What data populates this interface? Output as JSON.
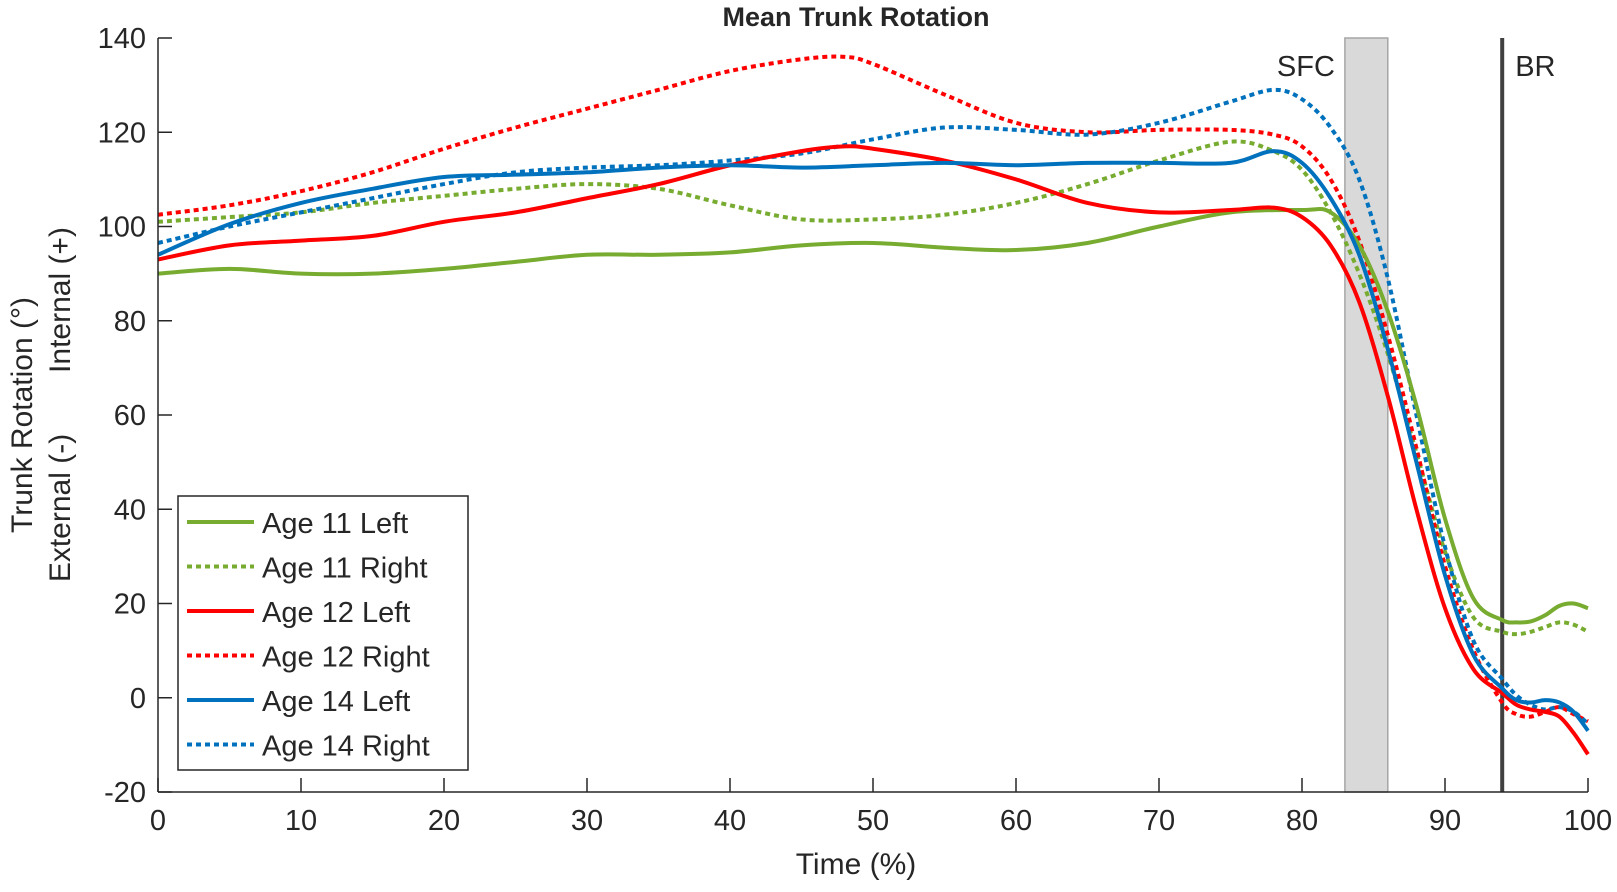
{
  "chart_data": {
    "type": "line",
    "title": "Mean Trunk Rotation",
    "xlabel": "Time (%)",
    "ylabel": "Trunk Rotation (°)",
    "ylabel_internal": "Internal (+)",
    "ylabel_external": "External (-)",
    "xlim": [
      0,
      100
    ],
    "ylim": [
      -20,
      140
    ],
    "xticks": [
      0,
      10,
      20,
      30,
      40,
      50,
      60,
      70,
      80,
      90,
      100
    ],
    "yticks": [
      -20,
      0,
      20,
      40,
      60,
      80,
      100,
      120,
      140
    ],
    "grid": false,
    "legend_position": "bottom-left",
    "events": [
      {
        "label": "SFC",
        "type": "band",
        "x_start": 83,
        "x_end": 86,
        "color": "#d9d9d9"
      },
      {
        "label": "BR",
        "type": "line",
        "x": 94,
        "color": "#404040"
      }
    ],
    "series": [
      {
        "name": "Age 11 Left",
        "color": "#77ac30",
        "style": "solid",
        "x": [
          0,
          5,
          10,
          15,
          20,
          25,
          30,
          35,
          40,
          45,
          50,
          55,
          60,
          65,
          70,
          75,
          80,
          82,
          84,
          86,
          88,
          90,
          92,
          94,
          95,
          96,
          97,
          98,
          99,
          100
        ],
        "y": [
          90,
          91,
          90,
          90,
          91,
          92.5,
          94,
          94,
          94.5,
          96,
          96.5,
          95.5,
          95,
          96.5,
          100,
          103,
          103.5,
          103,
          96,
          82,
          62,
          38,
          21,
          16.5,
          16,
          16.2,
          17.5,
          19.5,
          20,
          19
        ]
      },
      {
        "name": "Age 11 Right",
        "color": "#77ac30",
        "style": "dotted",
        "x": [
          0,
          5,
          10,
          15,
          20,
          25,
          30,
          35,
          40,
          45,
          50,
          55,
          60,
          65,
          70,
          75,
          78,
          80,
          82,
          84,
          86,
          88,
          90,
          92,
          94,
          95,
          96,
          97,
          98,
          99,
          100
        ],
        "y": [
          101,
          102,
          103,
          105,
          106.5,
          108,
          109,
          108,
          104.5,
          101.5,
          101.5,
          102.5,
          105,
          109,
          114,
          118,
          116,
          112,
          103,
          90,
          73,
          52,
          31,
          17,
          14,
          13.5,
          14,
          15,
          16,
          15.5,
          14
        ]
      },
      {
        "name": "Age 12 Left",
        "color": "#ff0000",
        "style": "solid",
        "x": [
          0,
          5,
          10,
          15,
          20,
          25,
          30,
          35,
          40,
          45,
          48,
          50,
          55,
          60,
          65,
          70,
          75,
          78,
          80,
          82,
          84,
          86,
          88,
          90,
          92,
          94,
          95,
          96,
          97,
          98,
          99,
          100
        ],
        "y": [
          93,
          96,
          97,
          98,
          101,
          103,
          106,
          109,
          113,
          116,
          117,
          116.5,
          114,
          110,
          105,
          103,
          103.5,
          104,
          102,
          96,
          84,
          64,
          40,
          19,
          6,
          1,
          -1.5,
          -2.5,
          -3,
          -4,
          -7.5,
          -12
        ]
      },
      {
        "name": "Age 12 Right",
        "color": "#ff0000",
        "style": "dotted",
        "x": [
          0,
          5,
          10,
          15,
          20,
          25,
          30,
          35,
          40,
          45,
          48,
          50,
          55,
          60,
          65,
          70,
          75,
          78,
          80,
          82,
          84,
          86,
          88,
          90,
          92,
          94,
          95,
          96,
          97,
          98,
          99,
          100
        ],
        "y": [
          102.5,
          104.5,
          107.5,
          111.5,
          116.5,
          121,
          125,
          129,
          133,
          135.5,
          136,
          134.5,
          128,
          122,
          120,
          120.5,
          120.5,
          119.5,
          117,
          110,
          97,
          77,
          53,
          28,
          10,
          -1,
          -3.5,
          -4,
          -3,
          -2,
          -3.5,
          -5
        ]
      },
      {
        "name": "Age 14 Left",
        "color": "#0072bd",
        "style": "solid",
        "x": [
          0,
          5,
          10,
          15,
          20,
          25,
          30,
          35,
          40,
          45,
          50,
          55,
          60,
          65,
          70,
          75,
          78,
          80,
          82,
          84,
          86,
          88,
          90,
          92,
          94,
          95,
          96,
          97,
          98,
          99,
          100
        ],
        "y": [
          94,
          100.5,
          105,
          108,
          110.5,
          111,
          111.5,
          112.5,
          113,
          112.5,
          113,
          113.5,
          113,
          113.5,
          113.5,
          113.5,
          116,
          113.5,
          106,
          94,
          74,
          50,
          26,
          9,
          2,
          -0.5,
          -1,
          -0.5,
          -1,
          -3,
          -7
        ]
      },
      {
        "name": "Age 14 Right",
        "color": "#0072bd",
        "style": "dotted",
        "x": [
          0,
          5,
          10,
          15,
          20,
          25,
          30,
          35,
          40,
          45,
          50,
          55,
          60,
          65,
          70,
          75,
          78,
          80,
          82,
          84,
          86,
          88,
          90,
          92,
          94,
          95,
          96,
          97,
          98,
          99,
          100
        ],
        "y": [
          96.5,
          100,
          103,
          106,
          109,
          111.5,
          112.5,
          113,
          114,
          115.5,
          118.5,
          121,
          120.5,
          119.5,
          122,
          126.5,
          129,
          127,
          121,
          110,
          89,
          60,
          32,
          12,
          4,
          0.5,
          -1.5,
          -2.5,
          -2,
          -3,
          -5.5
        ]
      }
    ]
  }
}
